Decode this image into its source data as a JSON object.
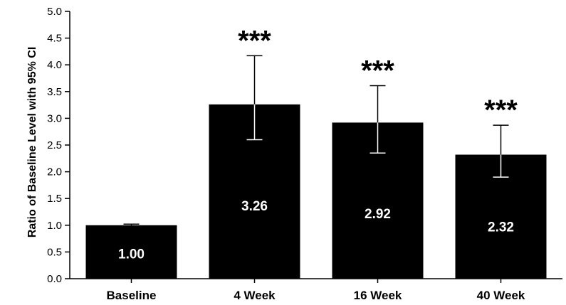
{
  "chart_data": {
    "type": "bar",
    "title": "",
    "xlabel": "",
    "ylabel": "Ratio of Baseline Level with 95% CI",
    "ylim": [
      0,
      5
    ],
    "yticks": [
      "0.0",
      "0.5",
      "1.0",
      "1.5",
      "2.0",
      "2.5",
      "3.0",
      "3.5",
      "4.0",
      "4.5",
      "5.0"
    ],
    "categories": [
      "Baseline",
      "4 Week",
      "16 Week",
      "40 Week"
    ],
    "values": [
      1.0,
      3.26,
      2.92,
      2.32
    ],
    "data_labels": [
      "1.00",
      "3.26",
      "2.92",
      "2.32"
    ],
    "ci_lower": [
      1.0,
      2.6,
      2.35,
      1.9
    ],
    "ci_upper": [
      1.02,
      4.17,
      3.61,
      2.87
    ],
    "annotations": [
      "",
      "***",
      "***",
      "***"
    ],
    "bar_color": "#000000",
    "label_color": "#ffffff",
    "grid": false,
    "legend": "none"
  }
}
